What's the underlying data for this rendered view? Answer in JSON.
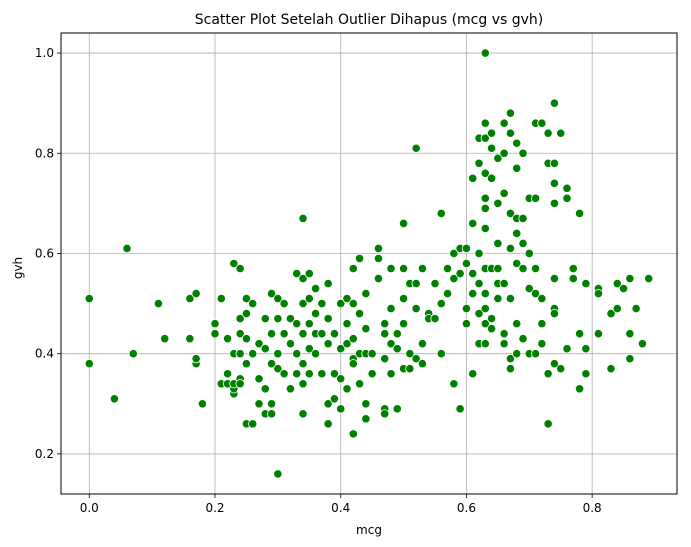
{
  "chart_data": {
    "type": "scatter",
    "title": "Scatter Plot Setelah Outlier Dihapus (mcg vs gvh)",
    "xlabel": "mcg",
    "ylabel": "gvh",
    "xlim": [
      -0.045,
      0.935
    ],
    "ylim": [
      0.12,
      1.04
    ],
    "xticks": [
      0.0,
      0.2,
      0.4,
      0.6,
      0.8
    ],
    "xtick_labels": [
      "0.0",
      "0.2",
      "0.4",
      "0.6",
      "0.8"
    ],
    "yticks": [
      0.2,
      0.4,
      0.6,
      0.8,
      1.0
    ],
    "ytick_labels": [
      "0.2",
      "0.4",
      "0.6",
      "0.8",
      "1.0"
    ],
    "grid": true,
    "marker_color": "#008000",
    "marker_edge_color": "#ffffff",
    "points": [
      [
        0.0,
        0.51
      ],
      [
        0.0,
        0.38
      ],
      [
        0.04,
        0.31
      ],
      [
        0.06,
        0.61
      ],
      [
        0.07,
        0.4
      ],
      [
        0.11,
        0.5
      ],
      [
        0.12,
        0.43
      ],
      [
        0.16,
        0.51
      ],
      [
        0.16,
        0.43
      ],
      [
        0.17,
        0.52
      ],
      [
        0.17,
        0.38
      ],
      [
        0.17,
        0.39
      ],
      [
        0.18,
        0.3
      ],
      [
        0.2,
        0.44
      ],
      [
        0.2,
        0.46
      ],
      [
        0.21,
        0.51
      ],
      [
        0.21,
        0.34
      ],
      [
        0.22,
        0.36
      ],
      [
        0.22,
        0.43
      ],
      [
        0.22,
        0.34
      ],
      [
        0.23,
        0.58
      ],
      [
        0.23,
        0.4
      ],
      [
        0.23,
        0.32
      ],
      [
        0.23,
        0.33
      ],
      [
        0.23,
        0.34
      ],
      [
        0.24,
        0.57
      ],
      [
        0.24,
        0.47
      ],
      [
        0.24,
        0.44
      ],
      [
        0.24,
        0.4
      ],
      [
        0.24,
        0.35
      ],
      [
        0.24,
        0.34
      ],
      [
        0.25,
        0.51
      ],
      [
        0.25,
        0.48
      ],
      [
        0.25,
        0.43
      ],
      [
        0.25,
        0.38
      ],
      [
        0.25,
        0.26
      ],
      [
        0.26,
        0.5
      ],
      [
        0.26,
        0.4
      ],
      [
        0.26,
        0.26
      ],
      [
        0.27,
        0.42
      ],
      [
        0.27,
        0.35
      ],
      [
        0.27,
        0.3
      ],
      [
        0.28,
        0.47
      ],
      [
        0.28,
        0.41
      ],
      [
        0.28,
        0.33
      ],
      [
        0.28,
        0.28
      ],
      [
        0.29,
        0.52
      ],
      [
        0.29,
        0.44
      ],
      [
        0.29,
        0.38
      ],
      [
        0.29,
        0.3
      ],
      [
        0.29,
        0.28
      ],
      [
        0.3,
        0.51
      ],
      [
        0.3,
        0.47
      ],
      [
        0.3,
        0.4
      ],
      [
        0.3,
        0.37
      ],
      [
        0.3,
        0.16
      ],
      [
        0.31,
        0.5
      ],
      [
        0.31,
        0.44
      ],
      [
        0.31,
        0.36
      ],
      [
        0.32,
        0.47
      ],
      [
        0.32,
        0.42
      ],
      [
        0.32,
        0.33
      ],
      [
        0.33,
        0.56
      ],
      [
        0.33,
        0.46
      ],
      [
        0.33,
        0.4
      ],
      [
        0.33,
        0.36
      ],
      [
        0.34,
        0.67
      ],
      [
        0.34,
        0.55
      ],
      [
        0.34,
        0.5
      ],
      [
        0.34,
        0.44
      ],
      [
        0.34,
        0.38
      ],
      [
        0.34,
        0.34
      ],
      [
        0.34,
        0.28
      ],
      [
        0.35,
        0.56
      ],
      [
        0.35,
        0.51
      ],
      [
        0.35,
        0.46
      ],
      [
        0.35,
        0.41
      ],
      [
        0.35,
        0.36
      ],
      [
        0.36,
        0.53
      ],
      [
        0.36,
        0.48
      ],
      [
        0.36,
        0.44
      ],
      [
        0.36,
        0.4
      ],
      [
        0.37,
        0.5
      ],
      [
        0.37,
        0.44
      ],
      [
        0.37,
        0.36
      ],
      [
        0.38,
        0.54
      ],
      [
        0.38,
        0.47
      ],
      [
        0.38,
        0.42
      ],
      [
        0.38,
        0.3
      ],
      [
        0.38,
        0.26
      ],
      [
        0.39,
        0.44
      ],
      [
        0.39,
        0.36
      ],
      [
        0.39,
        0.31
      ],
      [
        0.4,
        0.5
      ],
      [
        0.4,
        0.41
      ],
      [
        0.4,
        0.35
      ],
      [
        0.4,
        0.29
      ],
      [
        0.41,
        0.51
      ],
      [
        0.41,
        0.46
      ],
      [
        0.41,
        0.42
      ],
      [
        0.41,
        0.33
      ],
      [
        0.42,
        0.57
      ],
      [
        0.42,
        0.5
      ],
      [
        0.42,
        0.43
      ],
      [
        0.42,
        0.39
      ],
      [
        0.42,
        0.38
      ],
      [
        0.42,
        0.24
      ],
      [
        0.43,
        0.59
      ],
      [
        0.43,
        0.48
      ],
      [
        0.43,
        0.4
      ],
      [
        0.43,
        0.34
      ],
      [
        0.44,
        0.52
      ],
      [
        0.44,
        0.45
      ],
      [
        0.44,
        0.4
      ],
      [
        0.44,
        0.3
      ],
      [
        0.44,
        0.27
      ],
      [
        0.45,
        0.4
      ],
      [
        0.45,
        0.36
      ],
      [
        0.46,
        0.59
      ],
      [
        0.46,
        0.61
      ],
      [
        0.46,
        0.55
      ],
      [
        0.47,
        0.46
      ],
      [
        0.47,
        0.44
      ],
      [
        0.47,
        0.39
      ],
      [
        0.47,
        0.29
      ],
      [
        0.47,
        0.28
      ],
      [
        0.48,
        0.57
      ],
      [
        0.48,
        0.49
      ],
      [
        0.48,
        0.42
      ],
      [
        0.48,
        0.36
      ],
      [
        0.49,
        0.44
      ],
      [
        0.49,
        0.41
      ],
      [
        0.49,
        0.29
      ],
      [
        0.5,
        0.66
      ],
      [
        0.5,
        0.57
      ],
      [
        0.5,
        0.51
      ],
      [
        0.5,
        0.46
      ],
      [
        0.5,
        0.37
      ],
      [
        0.51,
        0.54
      ],
      [
        0.51,
        0.4
      ],
      [
        0.51,
        0.37
      ],
      [
        0.52,
        0.81
      ],
      [
        0.52,
        0.54
      ],
      [
        0.52,
        0.49
      ],
      [
        0.52,
        0.39
      ],
      [
        0.53,
        0.57
      ],
      [
        0.53,
        0.42
      ],
      [
        0.53,
        0.38
      ],
      [
        0.54,
        0.48
      ],
      [
        0.54,
        0.47
      ],
      [
        0.55,
        0.54
      ],
      [
        0.55,
        0.47
      ],
      [
        0.56,
        0.68
      ],
      [
        0.56,
        0.5
      ],
      [
        0.56,
        0.4
      ],
      [
        0.57,
        0.57
      ],
      [
        0.57,
        0.52
      ],
      [
        0.58,
        0.6
      ],
      [
        0.58,
        0.55
      ],
      [
        0.58,
        0.34
      ],
      [
        0.59,
        0.61
      ],
      [
        0.59,
        0.56
      ],
      [
        0.59,
        0.29
      ],
      [
        0.6,
        0.61
      ],
      [
        0.6,
        0.58
      ],
      [
        0.6,
        0.49
      ],
      [
        0.6,
        0.46
      ],
      [
        0.61,
        0.75
      ],
      [
        0.61,
        0.66
      ],
      [
        0.61,
        0.56
      ],
      [
        0.61,
        0.52
      ],
      [
        0.61,
        0.36
      ],
      [
        0.62,
        0.83
      ],
      [
        0.62,
        0.78
      ],
      [
        0.62,
        0.6
      ],
      [
        0.62,
        0.54
      ],
      [
        0.62,
        0.48
      ],
      [
        0.62,
        0.42
      ],
      [
        0.63,
        1.0
      ],
      [
        0.63,
        0.86
      ],
      [
        0.63,
        0.83
      ],
      [
        0.63,
        0.76
      ],
      [
        0.63,
        0.71
      ],
      [
        0.63,
        0.69
      ],
      [
        0.63,
        0.65
      ],
      [
        0.63,
        0.57
      ],
      [
        0.63,
        0.52
      ],
      [
        0.63,
        0.49
      ],
      [
        0.63,
        0.46
      ],
      [
        0.63,
        0.42
      ],
      [
        0.64,
        0.84
      ],
      [
        0.64,
        0.81
      ],
      [
        0.64,
        0.75
      ],
      [
        0.64,
        0.57
      ],
      [
        0.64,
        0.47
      ],
      [
        0.64,
        0.45
      ],
      [
        0.65,
        0.79
      ],
      [
        0.65,
        0.7
      ],
      [
        0.65,
        0.62
      ],
      [
        0.65,
        0.57
      ],
      [
        0.65,
        0.54
      ],
      [
        0.65,
        0.51
      ],
      [
        0.66,
        0.86
      ],
      [
        0.66,
        0.8
      ],
      [
        0.66,
        0.72
      ],
      [
        0.66,
        0.54
      ],
      [
        0.66,
        0.44
      ],
      [
        0.66,
        0.42
      ],
      [
        0.67,
        0.88
      ],
      [
        0.67,
        0.84
      ],
      [
        0.67,
        0.68
      ],
      [
        0.67,
        0.61
      ],
      [
        0.67,
        0.51
      ],
      [
        0.67,
        0.39
      ],
      [
        0.67,
        0.37
      ],
      [
        0.68,
        0.82
      ],
      [
        0.68,
        0.77
      ],
      [
        0.68,
        0.67
      ],
      [
        0.68,
        0.64
      ],
      [
        0.68,
        0.58
      ],
      [
        0.68,
        0.46
      ],
      [
        0.68,
        0.4
      ],
      [
        0.69,
        0.8
      ],
      [
        0.69,
        0.67
      ],
      [
        0.69,
        0.62
      ],
      [
        0.69,
        0.57
      ],
      [
        0.69,
        0.43
      ],
      [
        0.7,
        0.71
      ],
      [
        0.7,
        0.6
      ],
      [
        0.7,
        0.53
      ],
      [
        0.7,
        0.4
      ],
      [
        0.71,
        0.86
      ],
      [
        0.71,
        0.71
      ],
      [
        0.71,
        0.57
      ],
      [
        0.71,
        0.52
      ],
      [
        0.71,
        0.4
      ],
      [
        0.72,
        0.86
      ],
      [
        0.72,
        0.51
      ],
      [
        0.72,
        0.46
      ],
      [
        0.72,
        0.42
      ],
      [
        0.73,
        0.84
      ],
      [
        0.73,
        0.78
      ],
      [
        0.73,
        0.36
      ],
      [
        0.73,
        0.26
      ],
      [
        0.74,
        0.9
      ],
      [
        0.74,
        0.78
      ],
      [
        0.74,
        0.74
      ],
      [
        0.74,
        0.7
      ],
      [
        0.74,
        0.55
      ],
      [
        0.74,
        0.49
      ],
      [
        0.74,
        0.48
      ],
      [
        0.74,
        0.38
      ],
      [
        0.75,
        0.84
      ],
      [
        0.75,
        0.37
      ],
      [
        0.76,
        0.73
      ],
      [
        0.76,
        0.71
      ],
      [
        0.76,
        0.41
      ],
      [
        0.77,
        0.57
      ],
      [
        0.77,
        0.55
      ],
      [
        0.78,
        0.68
      ],
      [
        0.78,
        0.44
      ],
      [
        0.78,
        0.33
      ],
      [
        0.79,
        0.54
      ],
      [
        0.79,
        0.41
      ],
      [
        0.79,
        0.36
      ],
      [
        0.81,
        0.53
      ],
      [
        0.81,
        0.52
      ],
      [
        0.81,
        0.44
      ],
      [
        0.83,
        0.48
      ],
      [
        0.83,
        0.37
      ],
      [
        0.84,
        0.54
      ],
      [
        0.84,
        0.49
      ],
      [
        0.85,
        0.53
      ],
      [
        0.86,
        0.55
      ],
      [
        0.86,
        0.39
      ],
      [
        0.86,
        0.44
      ],
      [
        0.87,
        0.49
      ],
      [
        0.88,
        0.42
      ],
      [
        0.89,
        0.55
      ]
    ]
  }
}
